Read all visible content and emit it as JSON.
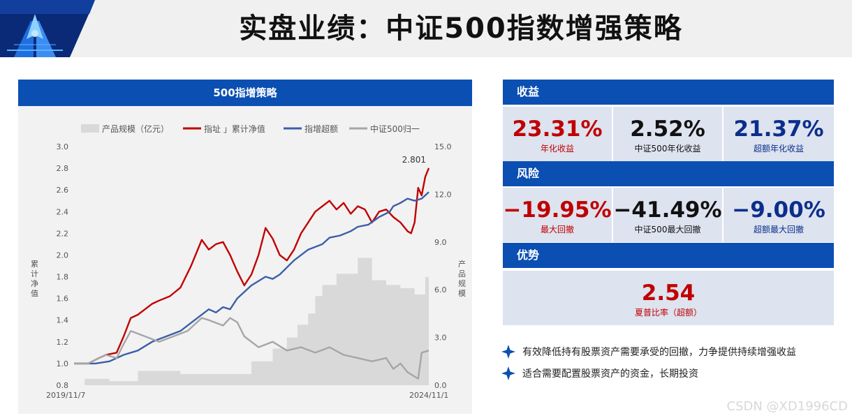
{
  "header": {
    "title": "实盘业绩：中证500指数增强策略"
  },
  "chart_panel": {
    "header": "500指增策略"
  },
  "chart_data": {
    "type": "line",
    "legend": [
      "产品规模（亿元）",
      "指址 」累计净值",
      "指增超额",
      "中证500归一"
    ],
    "legend_position": "top",
    "y_left_label": "累计净值",
    "y_right_label": "产品规模",
    "y_left_ticks": [
      "3.0",
      "2.8",
      "2.6",
      "2.4",
      "2.2",
      "2.0",
      "1.8",
      "1.6",
      "1.4",
      "1.2",
      "1.0",
      "0.8"
    ],
    "y_right_ticks": [
      "15.0",
      "12.0",
      "9.0",
      "6.0",
      "3.0",
      "0.0"
    ],
    "ylim_left": [
      0.8,
      3.0
    ],
    "ylim_right": [
      0,
      15
    ],
    "x_start": "2019/11/7",
    "x_end": "2024/11/1",
    "x_labels": [
      "2019/11/7",
      "2024/11/1"
    ],
    "end_annotation": "2.801",
    "series": [
      {
        "name": "指址 」累计净值",
        "color": "#c00000",
        "t": [
          0,
          0.04,
          0.07,
          0.09,
          0.12,
          0.14,
          0.16,
          0.18,
          0.2,
          0.22,
          0.24,
          0.27,
          0.3,
          0.33,
          0.36,
          0.38,
          0.4,
          0.42,
          0.44,
          0.46,
          0.48,
          0.5,
          0.52,
          0.54,
          0.56,
          0.58,
          0.6,
          0.62,
          0.64,
          0.66,
          0.68,
          0.7,
          0.72,
          0.74,
          0.76,
          0.78,
          0.8,
          0.82,
          0.84,
          0.86,
          0.88,
          0.9,
          0.92,
          0.94,
          0.95,
          0.96,
          0.97,
          0.98,
          0.99,
          1.0
        ],
        "values": [
          1.0,
          1.0,
          1.05,
          1.08,
          1.1,
          1.25,
          1.42,
          1.45,
          1.5,
          1.55,
          1.58,
          1.62,
          1.7,
          1.9,
          2.14,
          2.05,
          2.1,
          2.12,
          2.0,
          1.85,
          1.72,
          1.82,
          2.0,
          2.25,
          2.15,
          2.0,
          1.95,
          2.05,
          2.2,
          2.3,
          2.4,
          2.45,
          2.5,
          2.42,
          2.48,
          2.38,
          2.45,
          2.42,
          2.3,
          2.4,
          2.42,
          2.35,
          2.3,
          2.22,
          2.2,
          2.3,
          2.62,
          2.55,
          2.72,
          2.801
        ]
      },
      {
        "name": "指增超额",
        "color": "#3a5fa8",
        "t": [
          0,
          0.06,
          0.1,
          0.14,
          0.18,
          0.22,
          0.26,
          0.3,
          0.34,
          0.38,
          0.4,
          0.42,
          0.44,
          0.46,
          0.5,
          0.54,
          0.56,
          0.58,
          0.62,
          0.66,
          0.7,
          0.72,
          0.75,
          0.78,
          0.8,
          0.83,
          0.86,
          0.89,
          0.9,
          0.92,
          0.94,
          0.96,
          0.98,
          1.0
        ],
        "values": [
          1.0,
          1.0,
          1.02,
          1.08,
          1.12,
          1.2,
          1.25,
          1.3,
          1.4,
          1.5,
          1.47,
          1.52,
          1.5,
          1.6,
          1.72,
          1.8,
          1.78,
          1.82,
          1.95,
          2.05,
          2.1,
          2.16,
          2.18,
          2.22,
          2.26,
          2.28,
          2.35,
          2.4,
          2.45,
          2.48,
          2.52,
          2.5,
          2.52,
          2.58
        ]
      },
      {
        "name": "中证500归一",
        "color": "#a6a6a6",
        "t": [
          0,
          0.04,
          0.07,
          0.09,
          0.12,
          0.14,
          0.16,
          0.2,
          0.24,
          0.28,
          0.32,
          0.36,
          0.38,
          0.42,
          0.44,
          0.46,
          0.48,
          0.52,
          0.56,
          0.6,
          0.64,
          0.68,
          0.72,
          0.76,
          0.8,
          0.84,
          0.88,
          0.9,
          0.92,
          0.94,
          0.96,
          0.97,
          0.98,
          1.0
        ],
        "values": [
          1.0,
          1.0,
          1.05,
          1.08,
          1.05,
          1.18,
          1.3,
          1.25,
          1.2,
          1.25,
          1.3,
          1.42,
          1.4,
          1.35,
          1.42,
          1.38,
          1.25,
          1.15,
          1.2,
          1.12,
          1.15,
          1.1,
          1.15,
          1.08,
          1.05,
          1.02,
          1.05,
          0.95,
          1.0,
          0.92,
          0.88,
          0.86,
          1.1,
          1.12
        ]
      }
    ],
    "area_series": {
      "name": "产品规模（亿元）",
      "color": "#d9d9d9",
      "t": [
        0.0,
        0.03,
        0.03,
        0.1,
        0.1,
        0.18,
        0.18,
        0.3,
        0.3,
        0.42,
        0.42,
        0.5,
        0.5,
        0.56,
        0.56,
        0.6,
        0.6,
        0.63,
        0.63,
        0.66,
        0.66,
        0.68,
        0.68,
        0.7,
        0.7,
        0.74,
        0.74,
        0.8,
        0.8,
        0.84,
        0.84,
        0.88,
        0.88,
        0.92,
        0.92,
        0.96,
        0.96,
        0.99,
        0.99,
        1.0
      ],
      "values": [
        0.0,
        0.0,
        0.4,
        0.4,
        0.25,
        0.25,
        0.9,
        0.9,
        0.7,
        0.7,
        0.7,
        0.7,
        1.5,
        1.5,
        2.3,
        2.3,
        3.0,
        3.0,
        3.8,
        3.8,
        4.5,
        4.5,
        5.6,
        5.6,
        6.3,
        6.3,
        7.0,
        7.0,
        8.0,
        8.0,
        6.6,
        6.6,
        6.3,
        6.3,
        6.1,
        6.1,
        5.7,
        5.7,
        6.8,
        6.8
      ]
    }
  },
  "sections": [
    {
      "title": "收益",
      "stats": [
        {
          "value": "23.31%",
          "label": "年化收益",
          "color": "#c00000"
        },
        {
          "value": "2.52%",
          "label": "中证500年化收益",
          "color": "#111111"
        },
        {
          "value": "21.37%",
          "label": "超额年化收益",
          "color": "#0b2e8c"
        }
      ]
    },
    {
      "title": "风险",
      "stats": [
        {
          "value": "−19.95%",
          "label": "最大回撤",
          "color": "#c00000"
        },
        {
          "value": "−41.49%",
          "label": "中证500最大回撤",
          "color": "#111111"
        },
        {
          "value": "−9.00%",
          "label": "超额最大回撤",
          "color": "#0b2e8c"
        }
      ]
    },
    {
      "title": "优势",
      "stats": [
        {
          "value": "2.54",
          "label": "夏普比率（超额）",
          "color": "#c00000"
        }
      ]
    }
  ],
  "bullets": [
    {
      "icon": "diamond-icon",
      "text": "有效降低持有股票资产需要承受的回撤，力争提供持续增强收益"
    },
    {
      "icon": "diamond-icon",
      "text": "适合需要配置股票资产的资金，长期投资"
    }
  ],
  "watermark": "CSDN @XD1996CD",
  "colors": {
    "brand_blue": "#0b4fb3",
    "stat_bg": "#dde3ef",
    "red": "#c00000",
    "navy": "#0b2e8c"
  }
}
